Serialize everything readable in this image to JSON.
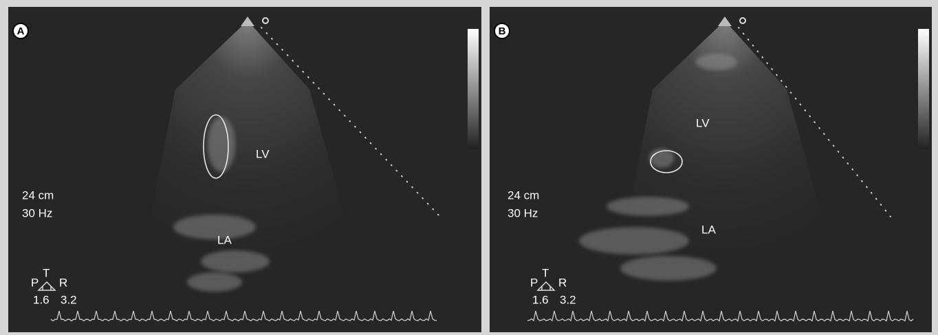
{
  "panels": [
    {
      "label": "A",
      "lv": "LV",
      "la": "LA",
      "depth": "24 cm",
      "frame_rate": "30 Hz",
      "orientation": {
        "p": "P",
        "t": "T",
        "r": "R",
        "left": "1.6",
        "right": "3.2"
      }
    },
    {
      "label": "B",
      "lv": "LV",
      "la": "LA",
      "depth": "24 cm",
      "frame_rate": "30 Hz",
      "orientation": {
        "p": "P",
        "t": "T",
        "r": "R",
        "left": "1.6",
        "right": "3.2"
      }
    }
  ]
}
